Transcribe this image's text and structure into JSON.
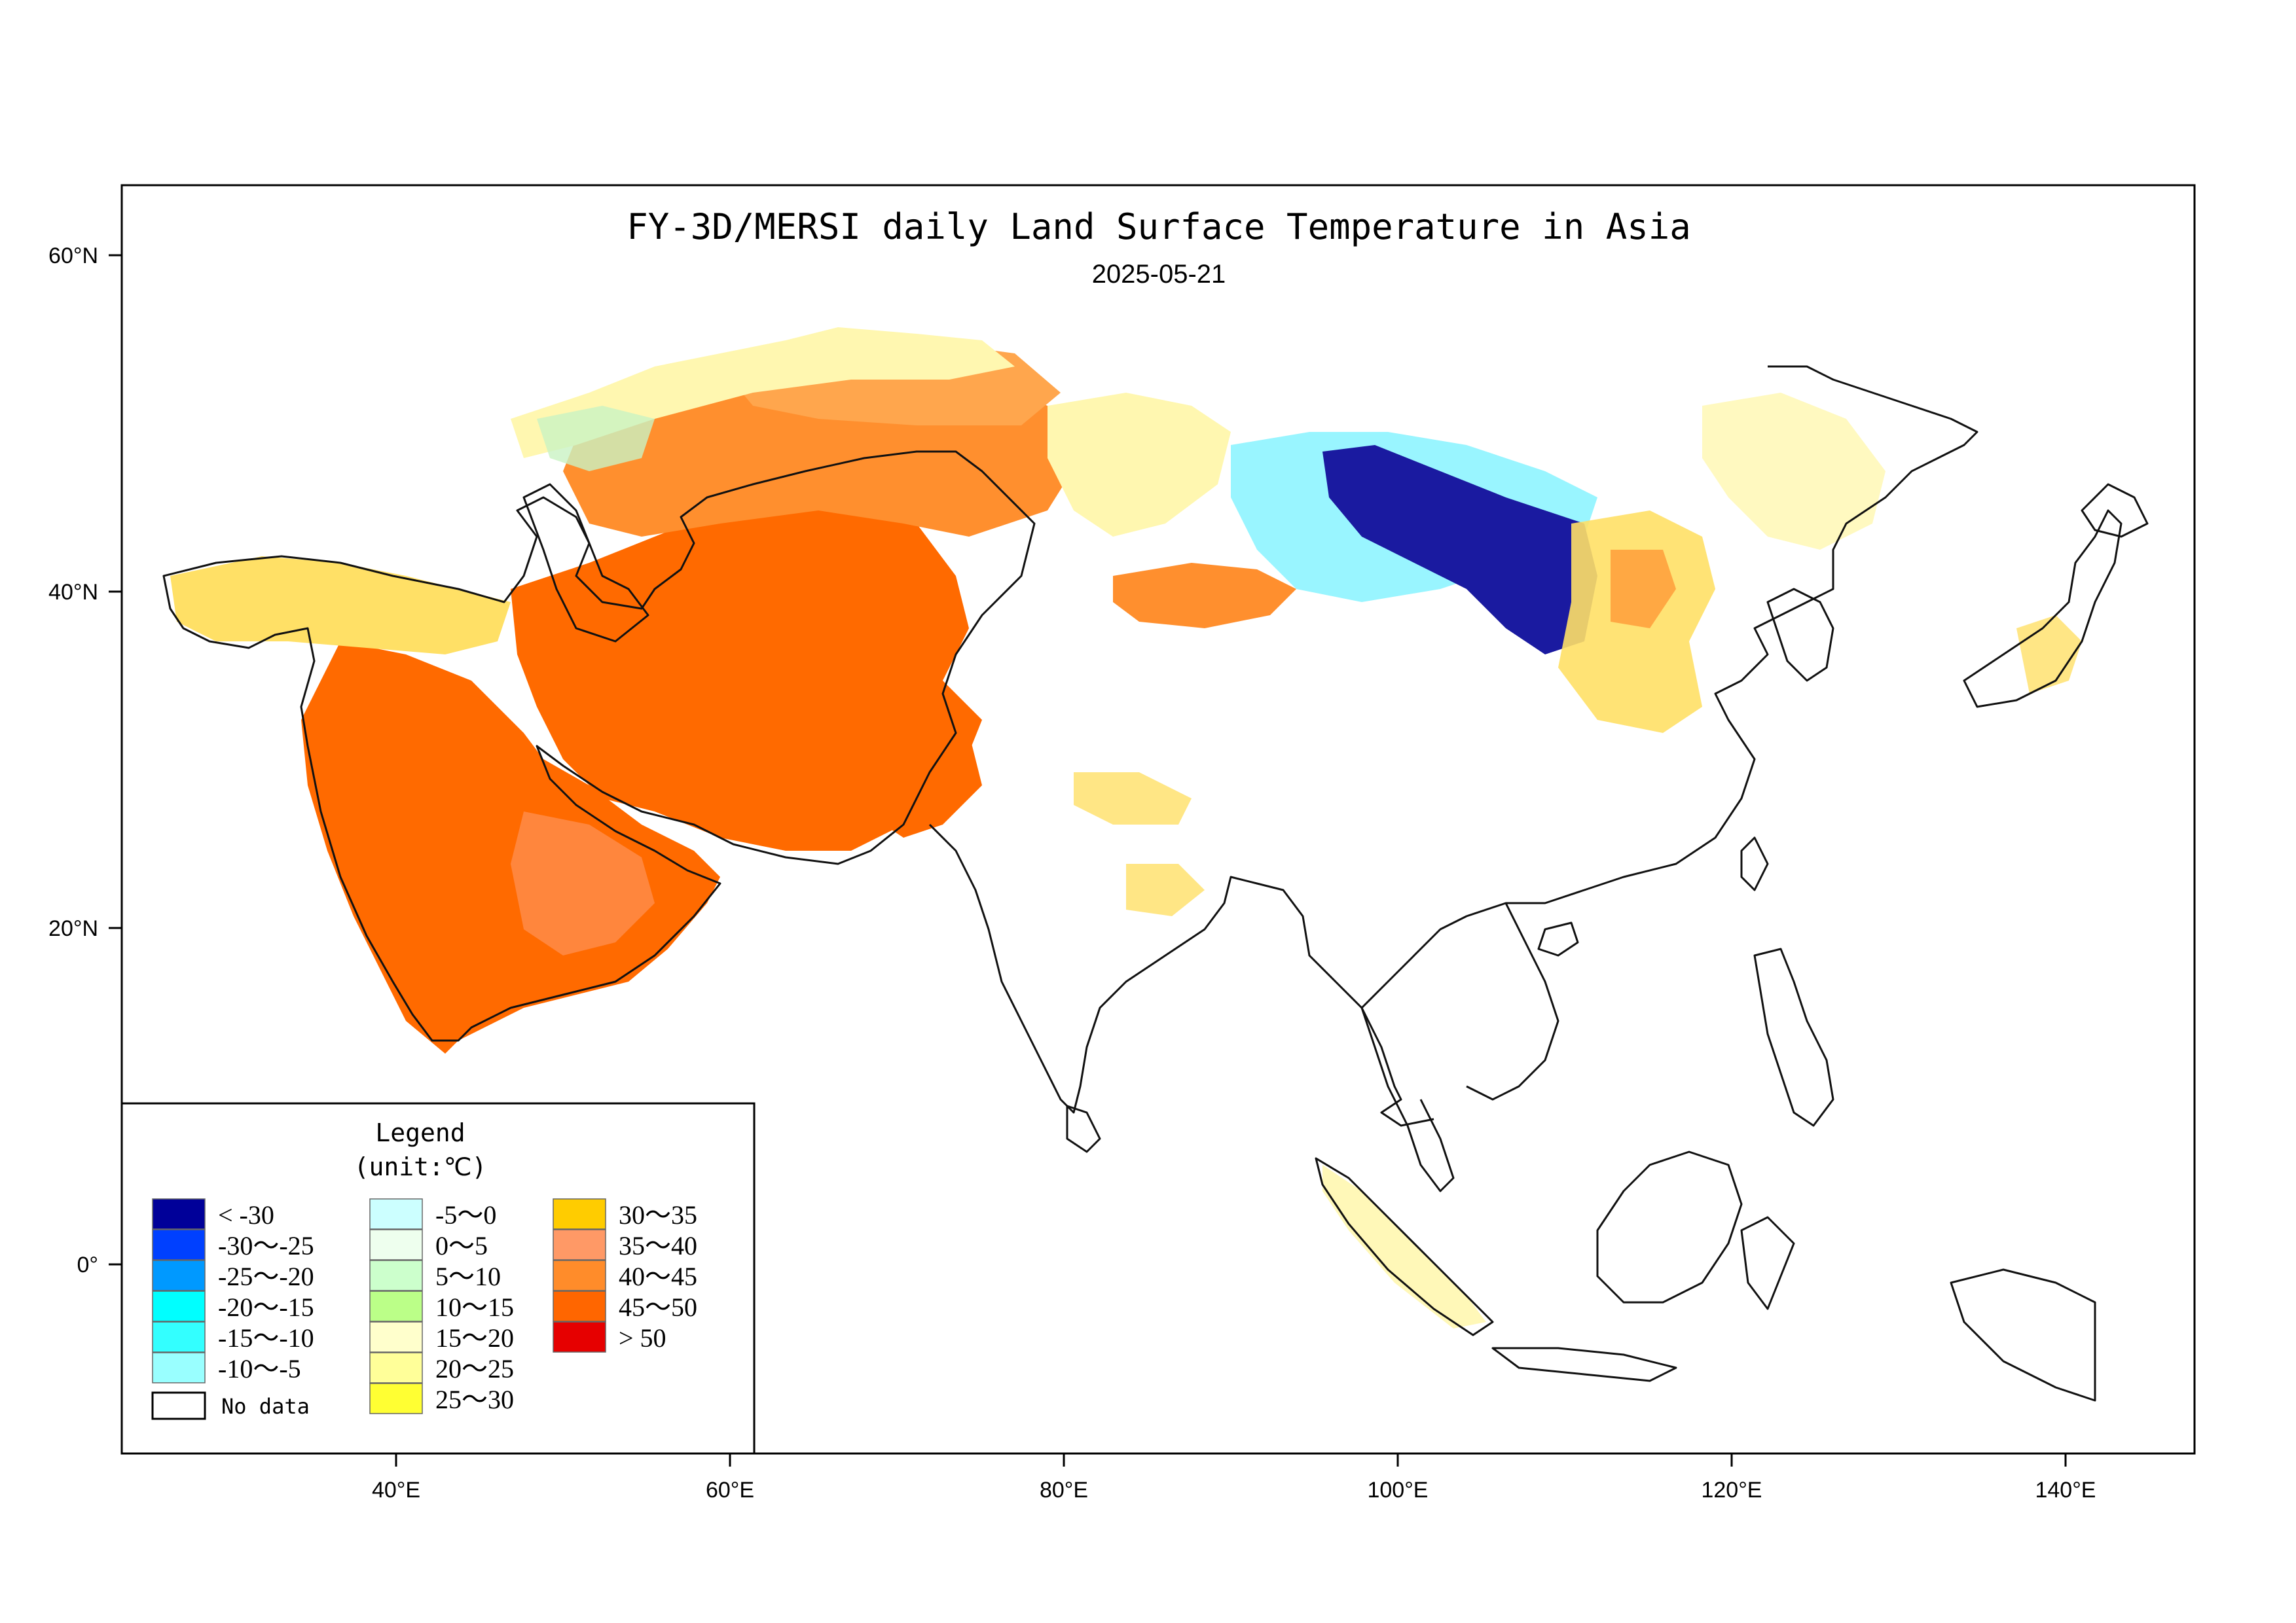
{
  "title": "FY-3D/MERSI daily Land Surface Temperature in Asia",
  "date": "2025-05-21",
  "axes": {
    "lat_labels": [
      "60°N",
      "40°N",
      "20°N",
      "0°"
    ],
    "lon_labels": [
      "40°E",
      "60°E",
      "80°E",
      "100°E",
      "120°E",
      "140°E"
    ]
  },
  "legend": {
    "title": "Legend",
    "unit": "(unit:℃)",
    "items": [
      {
        "label": "< -30",
        "color": "#000099"
      },
      {
        "label": "-30～-25",
        "color": "#0040ff"
      },
      {
        "label": "-25～-20",
        "color": "#0099ff"
      },
      {
        "label": "-20～-15",
        "color": "#00ffff"
      },
      {
        "label": "-15～-10",
        "color": "#33ffff"
      },
      {
        "label": "-10～-5",
        "color": "#99ffff"
      },
      {
        "label": "-5～0",
        "color": "#ccffff"
      },
      {
        "label": "0～5",
        "color": "#eeffee"
      },
      {
        "label": "5～10",
        "color": "#ccffcc"
      },
      {
        "label": "10～15",
        "color": "#bbff88"
      },
      {
        "label": "15～20",
        "color": "#ffffcc"
      },
      {
        "label": "20～25",
        "color": "#ffff99"
      },
      {
        "label": "25～30",
        "color": "#ffff33"
      },
      {
        "label": "30～35",
        "color": "#ffcc00"
      },
      {
        "label": "35～40",
        "color": "#ff9966"
      },
      {
        "label": "40～45",
        "color": "#ff8c2a"
      },
      {
        "label": "45～50",
        "color": "#ff6600"
      },
      {
        "label": "> 50",
        "color": "#e60000"
      }
    ],
    "no_data_label": "No data"
  }
}
